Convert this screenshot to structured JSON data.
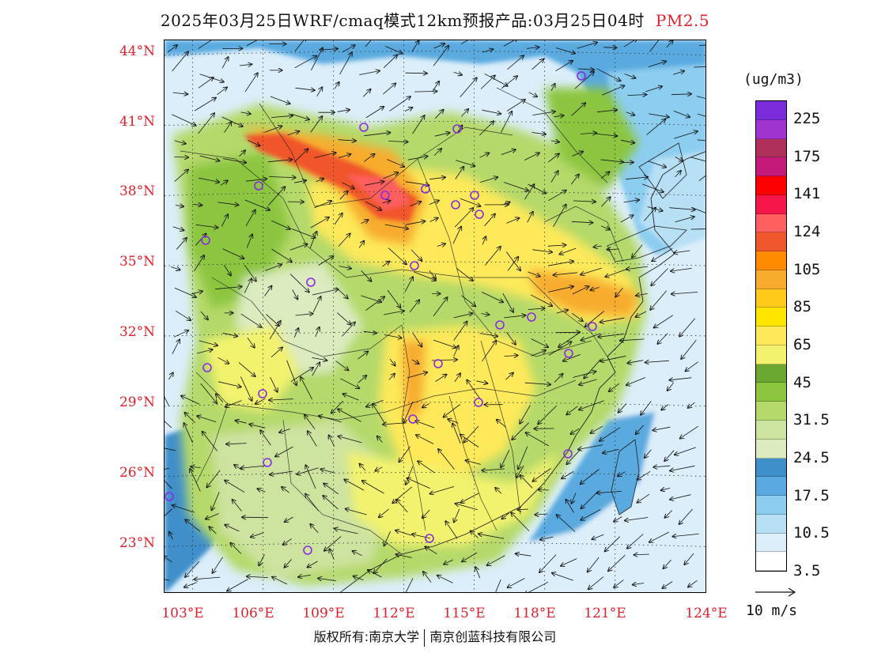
{
  "title": {
    "main": "2025年03月25日WRF/cmaq模式12km预报产品:03月25日04时",
    "variable": "PM2.5",
    "variable_color": "#e0202a"
  },
  "map": {
    "lat_labels": [
      "44°N",
      "41°N",
      "38°N",
      "35°N",
      "32°N",
      "29°N",
      "26°N",
      "23°N"
    ],
    "lon_labels": [
      "103°E",
      "106°E",
      "109°E",
      "112°E",
      "115°E",
      "118°E",
      "121°E",
      "124°E"
    ],
    "label_color": "#e0202a",
    "station_marker_color": "#8a2be2"
  },
  "legend": {
    "unit": "(ug/m3)",
    "labels": [
      "225",
      "175",
      "141",
      "124",
      "105",
      "85",
      "65",
      "45",
      "31.5",
      "24.5",
      "17.5",
      "10.5",
      "3.5"
    ],
    "colors": [
      "#7b2bd9",
      "#a034cf",
      "#b0305c",
      "#c41a7a",
      "#ff0000",
      "#f5164a",
      "#ff5f5f",
      "#f0572a",
      "#ff8c00",
      "#f7ac2e",
      "#ffcb1a",
      "#ffe600",
      "#fde95a",
      "#f2f26e",
      "#6aa832",
      "#8cc63f",
      "#b5d96a",
      "#cde3a0",
      "#dcebc0",
      "#3f8fca",
      "#5aaae0",
      "#8ccdf0",
      "#b8e0f5",
      "#dbeefa",
      "#ffffff"
    ]
  },
  "wind": {
    "reference_label": "10 m/s"
  },
  "copyright": {
    "left": "版权所有:南京大学",
    "right": "南京创蓝科技有限公司"
  }
}
